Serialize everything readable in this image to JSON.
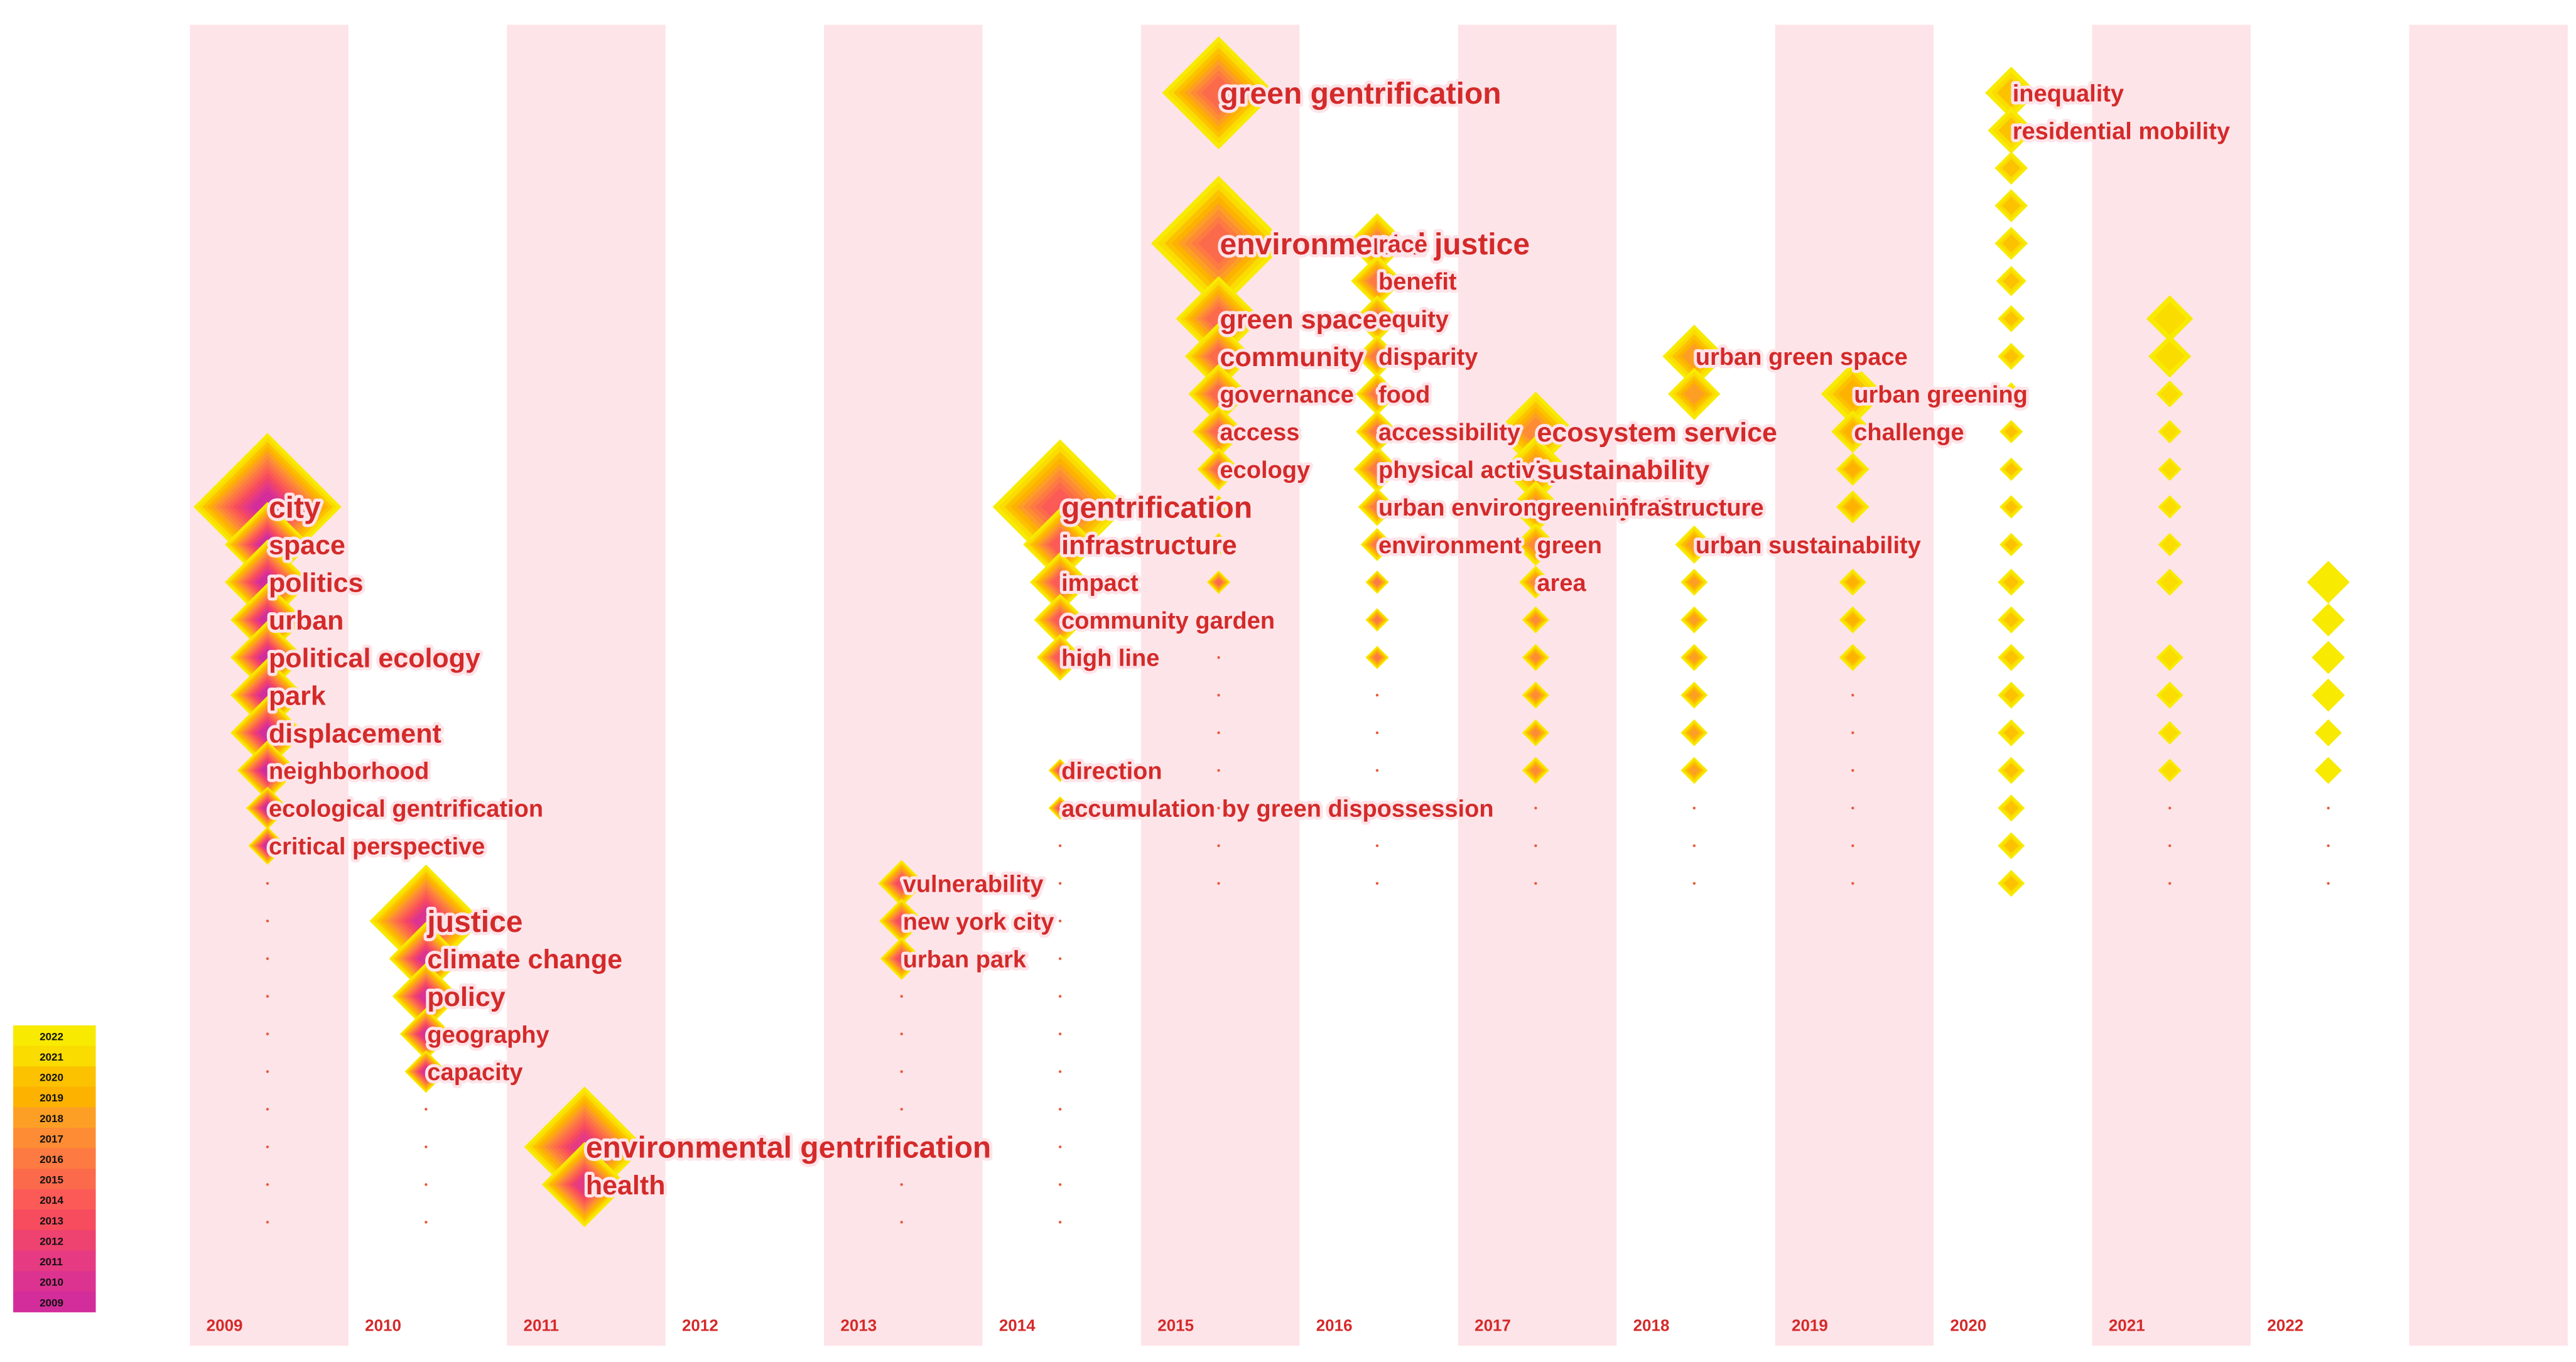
{
  "chart_data": {
    "type": "scatter",
    "subtype": "keyword-timezone-view",
    "years": [
      "2009",
      "2010",
      "2011",
      "2012",
      "2013",
      "2014",
      "2015",
      "2016",
      "2017",
      "2018",
      "2019",
      "2020",
      "2021",
      "2022"
    ],
    "legend": {
      "placement": "bottom-left",
      "labels": [
        "2022",
        "2021",
        "2020",
        "2019",
        "2018",
        "2017",
        "2016",
        "2015",
        "2014",
        "2013",
        "2012",
        "2011",
        "2010",
        "2009"
      ],
      "colors": [
        "#f8ea00",
        "#fadc00",
        "#fcc200",
        "#fdb200",
        "#fd9f24",
        "#fd8c34",
        "#fd7a42",
        "#fc6a4c",
        "#fb5a56",
        "#f64c5e",
        "#ee4270",
        "#e63a82",
        "#dc3390",
        "#d22d9a"
      ]
    },
    "band_color": "#fde4e8",
    "label_color": "#d42a2a",
    "keywords": [
      {
        "label": "city",
        "year": 2009,
        "slot": 0,
        "size": 12
      },
      {
        "label": "space",
        "year": 2009,
        "slot": 1,
        "size": 4
      },
      {
        "label": "politics",
        "year": 2009,
        "slot": 2,
        "size": 4
      },
      {
        "label": "urban",
        "year": 2009,
        "slot": 3,
        "size": 3
      },
      {
        "label": "political ecology",
        "year": 2009,
        "slot": 4,
        "size": 3
      },
      {
        "label": "park",
        "year": 2009,
        "slot": 5,
        "size": 3
      },
      {
        "label": "displacement",
        "year": 2009,
        "slot": 6,
        "size": 3
      },
      {
        "label": "neighborhood",
        "year": 2009,
        "slot": 7,
        "size": 2
      },
      {
        "label": "ecological gentrification",
        "year": 2009,
        "slot": 8,
        "size": 1
      },
      {
        "label": "critical perspective",
        "year": 2009,
        "slot": 9,
        "size": 0.8
      },
      {
        "label": "justice",
        "year": 2010,
        "slot": 11,
        "size": 7
      },
      {
        "label": "climate change",
        "year": 2010,
        "slot": 12,
        "size": 3
      },
      {
        "label": "policy",
        "year": 2010,
        "slot": 13,
        "size": 2.5
      },
      {
        "label": "geography",
        "year": 2010,
        "slot": 14,
        "size": 1.5
      },
      {
        "label": "capacity",
        "year": 2010,
        "slot": 15,
        "size": 1
      },
      {
        "label": "environmental gentrification",
        "year": 2011,
        "slot": 17,
        "size": 8
      },
      {
        "label": "health",
        "year": 2011,
        "slot": 18,
        "size": 4
      },
      {
        "label": "vulnerability",
        "year": 2013,
        "slot": 10,
        "size": 1.2
      },
      {
        "label": "new york city",
        "year": 2013,
        "slot": 11,
        "size": 1.1
      },
      {
        "label": "urban park",
        "year": 2013,
        "slot": 12,
        "size": 1
      },
      {
        "label": "gentrification",
        "year": 2014,
        "slot": 0,
        "size": 10
      },
      {
        "label": "infrastructure",
        "year": 2014,
        "slot": 1,
        "size": 3
      },
      {
        "label": "impact",
        "year": 2014,
        "slot": 2,
        "size": 2
      },
      {
        "label": "community garden",
        "year": 2014,
        "slot": 3,
        "size": 1.5
      },
      {
        "label": "high line",
        "year": 2014,
        "slot": 4,
        "size": 1.2
      },
      {
        "label": "direction",
        "year": 2014,
        "slot": 7,
        "size": 0.3
      },
      {
        "label": "accumulation by green dispossession",
        "year": 2014,
        "slot": 8,
        "size": 0.3
      },
      {
        "label": "green gentrification",
        "year": 2015,
        "slot": -11,
        "size": 7
      },
      {
        "label": "environmental justice",
        "year": 2015,
        "slot": -7,
        "size": 10
      },
      {
        "label": "green space",
        "year": 2015,
        "slot": -5,
        "size": 4
      },
      {
        "label": "community",
        "year": 2015,
        "slot": -4,
        "size": 2.5
      },
      {
        "label": "governance",
        "year": 2015,
        "slot": -3,
        "size": 2
      },
      {
        "label": "access",
        "year": 2015,
        "slot": -2,
        "size": 1.5
      },
      {
        "label": "ecology",
        "year": 2015,
        "slot": -1,
        "size": 1
      },
      {
        "label": "race",
        "year": 2016,
        "slot": -7,
        "size": 2
      },
      {
        "label": "benefit",
        "year": 2016,
        "slot": -6,
        "size": 1.5
      },
      {
        "label": "equity",
        "year": 2016,
        "slot": -5,
        "size": 1.2
      },
      {
        "label": "disparity",
        "year": 2016,
        "slot": -4,
        "size": 1
      },
      {
        "label": "food",
        "year": 2016,
        "slot": -3,
        "size": 1
      },
      {
        "label": "accessibility",
        "year": 2016,
        "slot": -2,
        "size": 1
      },
      {
        "label": "physical activity",
        "year": 2016,
        "slot": -1,
        "size": 1.2
      },
      {
        "label": "urban environmental justice",
        "year": 2016,
        "slot": 0,
        "size": 0.8
      },
      {
        "label": "environment",
        "year": 2016,
        "slot": 1,
        "size": 0.6
      },
      {
        "label": "ecosystem service",
        "year": 2017,
        "slot": -2,
        "size": 3.5
      },
      {
        "label": "sustainability",
        "year": 2017,
        "slot": -1,
        "size": 2.5
      },
      {
        "label": "green infrastructure",
        "year": 2017,
        "slot": 0,
        "size": 1.5
      },
      {
        "label": "green",
        "year": 2017,
        "slot": 1,
        "size": 1
      },
      {
        "label": "area",
        "year": 2017,
        "slot": 2,
        "size": 0.6
      },
      {
        "label": "urban green space",
        "year": 2018,
        "slot": -4,
        "size": 2.2
      },
      {
        "label": "urban sustainability",
        "year": 2018,
        "slot": 1,
        "size": 0.8
      },
      {
        "label": "urban greening",
        "year": 2019,
        "slot": -3,
        "size": 2.2
      },
      {
        "label": "challenge",
        "year": 2019,
        "slot": -2,
        "size": 1
      },
      {
        "label": "inequality",
        "year": 2020,
        "slot": -11,
        "size": 1.5
      },
      {
        "label": "residential mobility",
        "year": 2020,
        "slot": -10,
        "size": 1.2
      }
    ],
    "unlabeled_nodes": [
      {
        "year": 2015,
        "slot": 0,
        "size": 0.3
      },
      {
        "year": 2015,
        "slot": 1,
        "size": 0.3
      },
      {
        "year": 2015,
        "slot": 2,
        "size": 0.3
      },
      {
        "year": 2016,
        "slot": 2,
        "size": 0.3
      },
      {
        "year": 2016,
        "slot": 3,
        "size": 0.3
      },
      {
        "year": 2016,
        "slot": 4,
        "size": 0.3
      },
      {
        "year": 2017,
        "slot": 3,
        "size": 0.4
      },
      {
        "year": 2017,
        "slot": 4,
        "size": 0.4
      },
      {
        "year": 2017,
        "slot": 5,
        "size": 0.4
      },
      {
        "year": 2017,
        "slot": 6,
        "size": 0.4
      },
      {
        "year": 2017,
        "slot": 7,
        "size": 0.4
      },
      {
        "year": 2018,
        "slot": -3,
        "size": 1.5
      },
      {
        "year": 2018,
        "slot": 2,
        "size": 0.4
      },
      {
        "year": 2018,
        "slot": 3,
        "size": 0.4
      },
      {
        "year": 2018,
        "slot": 4,
        "size": 0.4
      },
      {
        "year": 2018,
        "slot": 5,
        "size": 0.4
      },
      {
        "year": 2018,
        "slot": 6,
        "size": 0.4
      },
      {
        "year": 2018,
        "slot": 7,
        "size": 0.4
      },
      {
        "year": 2019,
        "slot": -1,
        "size": 0.6
      },
      {
        "year": 2019,
        "slot": 0,
        "size": 0.6
      },
      {
        "year": 2019,
        "slot": 2,
        "size": 0.4
      },
      {
        "year": 2019,
        "slot": 3,
        "size": 0.4
      },
      {
        "year": 2019,
        "slot": 4,
        "size": 0.4
      },
      {
        "year": 2020,
        "slot": -9,
        "size": 0.6
      },
      {
        "year": 2020,
        "slot": -8,
        "size": 0.6
      },
      {
        "year": 2020,
        "slot": -7,
        "size": 0.6
      },
      {
        "year": 2020,
        "slot": -6,
        "size": 0.5
      },
      {
        "year": 2020,
        "slot": -5,
        "size": 0.4
      },
      {
        "year": 2020,
        "slot": -4,
        "size": 0.4
      },
      {
        "year": 2020,
        "slot": -3,
        "size": 0.3
      },
      {
        "year": 2020,
        "slot": -2,
        "size": 0.3
      },
      {
        "year": 2020,
        "slot": -1,
        "size": 0.3
      },
      {
        "year": 2020,
        "slot": 0,
        "size": 0.3
      },
      {
        "year": 2020,
        "slot": 1,
        "size": 0.3
      },
      {
        "year": 2020,
        "slot": 2,
        "size": 0.4
      },
      {
        "year": 2020,
        "slot": 3,
        "size": 0.4
      },
      {
        "year": 2020,
        "slot": 4,
        "size": 0.4
      },
      {
        "year": 2020,
        "slot": 5,
        "size": 0.4
      },
      {
        "year": 2020,
        "slot": 6,
        "size": 0.4
      },
      {
        "year": 2020,
        "slot": 7,
        "size": 0.4
      },
      {
        "year": 2020,
        "slot": 8,
        "size": 0.4
      },
      {
        "year": 2020,
        "slot": 9,
        "size": 0.4
      },
      {
        "year": 2020,
        "slot": 10,
        "size": 0.4
      },
      {
        "year": 2021,
        "slot": -5,
        "size": 1.2
      },
      {
        "year": 2021,
        "slot": -4,
        "size": 1
      },
      {
        "year": 2021,
        "slot": -3,
        "size": 0.4
      },
      {
        "year": 2021,
        "slot": -2,
        "size": 0.3
      },
      {
        "year": 2021,
        "slot": -1,
        "size": 0.3
      },
      {
        "year": 2021,
        "slot": 0,
        "size": 0.3
      },
      {
        "year": 2021,
        "slot": 1,
        "size": 0.3
      },
      {
        "year": 2021,
        "slot": 2,
        "size": 0.4
      },
      {
        "year": 2021,
        "slot": 4,
        "size": 0.4
      },
      {
        "year": 2021,
        "slot": 5,
        "size": 0.4
      },
      {
        "year": 2021,
        "slot": 6,
        "size": 0.3
      },
      {
        "year": 2021,
        "slot": 7,
        "size": 0.3
      },
      {
        "year": 2022,
        "slot": 2,
        "size": 1
      },
      {
        "year": 2022,
        "slot": 3,
        "size": 0.6
      },
      {
        "year": 2022,
        "slot": 4,
        "size": 0.6
      },
      {
        "year": 2022,
        "slot": 5,
        "size": 0.6
      },
      {
        "year": 2022,
        "slot": 6,
        "size": 0.4
      },
      {
        "year": 2022,
        "slot": 7,
        "size": 0.4
      }
    ]
  }
}
